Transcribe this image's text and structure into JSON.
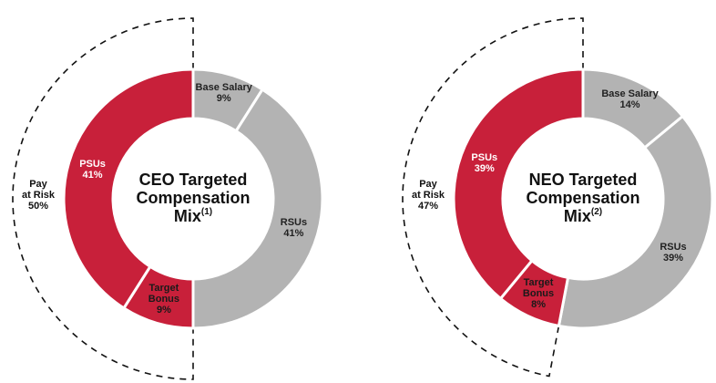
{
  "chart_data": [
    {
      "type": "pie",
      "title_lines": [
        "CEO Targeted",
        "Compensation",
        "Mix"
      ],
      "title_note": "(1)",
      "categories": [
        "Base Salary",
        "RSUs",
        "Target Bonus",
        "PSUs"
      ],
      "values": [
        9,
        41,
        9,
        41
      ],
      "value_labels": [
        "9%",
        "41%",
        "9%",
        "41%"
      ],
      "colors": [
        "#b3b3b3",
        "#b3b3b3",
        "#c8203a",
        "#c8203a"
      ],
      "annotation": {
        "lines": [
          "Pay",
          "at Risk"
        ],
        "value": 50,
        "value_label": "50%"
      }
    },
    {
      "type": "pie",
      "title_lines": [
        "NEO Targeted",
        "Compensation",
        "Mix"
      ],
      "title_note": "(2)",
      "categories": [
        "Base Salary",
        "RSUs",
        "Target Bonus",
        "PSUs"
      ],
      "values": [
        14,
        39,
        8,
        39
      ],
      "value_labels": [
        "14%",
        "39%",
        "8%",
        "39%"
      ],
      "colors": [
        "#b3b3b3",
        "#b3b3b3",
        "#c8203a",
        "#c8203a"
      ],
      "annotation": {
        "lines": [
          "Pay",
          "at Risk"
        ],
        "value": 47,
        "value_label": "47%"
      }
    }
  ]
}
